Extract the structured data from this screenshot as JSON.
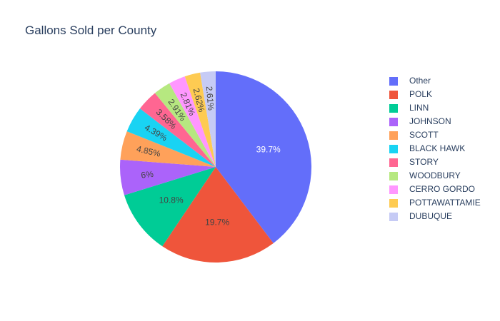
{
  "title": "Gallons Sold per County",
  "chart_data": {
    "type": "pie",
    "title": "Gallons Sold per County",
    "legend_position": "right",
    "sort": "descending",
    "direction": "clockwise",
    "start": "top",
    "slices": [
      {
        "label": "Other",
        "value": 39.7,
        "text": "39.7%",
        "color": "#636efa",
        "text_color": "#ffffff"
      },
      {
        "label": "POLK",
        "value": 19.7,
        "text": "19.7%",
        "color": "#ef553b",
        "text_color": "#444444"
      },
      {
        "label": "LINN",
        "value": 10.8,
        "text": "10.8%",
        "color": "#00cc96",
        "text_color": "#444444"
      },
      {
        "label": "JOHNSON",
        "value": 6.0,
        "text": "6%",
        "color": "#ab63fa",
        "text_color": "#444444"
      },
      {
        "label": "SCOTT",
        "value": 4.85,
        "text": "4.85%",
        "color": "#ffa15a",
        "text_color": "#444444"
      },
      {
        "label": "BLACK HAWK",
        "value": 4.39,
        "text": "4.39%",
        "color": "#19d3f3",
        "text_color": "#444444"
      },
      {
        "label": "STORY",
        "value": 3.58,
        "text": "3.58%",
        "color": "#ff6692",
        "text_color": "#444444"
      },
      {
        "label": "WOODBURY",
        "value": 2.91,
        "text": "2.91%",
        "color": "#b6e880",
        "text_color": "#444444"
      },
      {
        "label": "CERRO GORDO",
        "value": 2.81,
        "text": "2.81%",
        "color": "#ff97ff",
        "text_color": "#444444"
      },
      {
        "label": "POTTAWATTAMIE",
        "value": 2.62,
        "text": "2.62%",
        "color": "#fecb52",
        "text_color": "#444444"
      },
      {
        "label": "DUBUQUE",
        "value": 2.61,
        "text": "2.61%",
        "color": "#c6cbf5",
        "text_color": "#444444"
      }
    ]
  }
}
